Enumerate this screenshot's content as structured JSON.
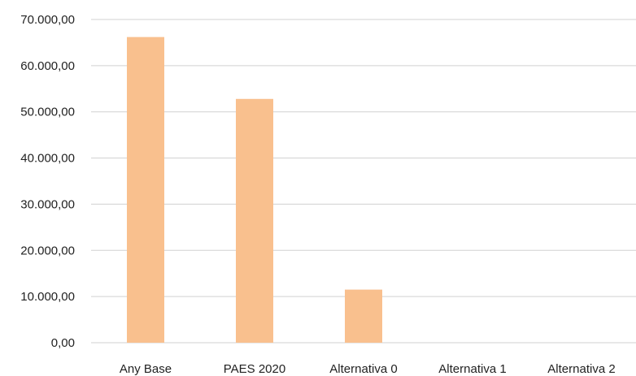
{
  "chart_data": {
    "type": "bar",
    "title": "",
    "xlabel": "",
    "ylabel": "",
    "categories": [
      "Any Base",
      "PAES 2020",
      "Alternativa 0",
      "Alternativa 1",
      "Alternativa 2"
    ],
    "values": [
      66200,
      52800,
      11500,
      0,
      0
    ],
    "ylim": [
      0,
      70000
    ],
    "y_ticks": [
      "0,00",
      "10.000,00",
      "20.000,00",
      "30.000,00",
      "40.000,00",
      "50.000,00",
      "60.000,00",
      "70.000,00"
    ],
    "grid": true,
    "legend": "none",
    "bar_color": "#F9C08E",
    "grid_color": "#D0D0D0"
  }
}
